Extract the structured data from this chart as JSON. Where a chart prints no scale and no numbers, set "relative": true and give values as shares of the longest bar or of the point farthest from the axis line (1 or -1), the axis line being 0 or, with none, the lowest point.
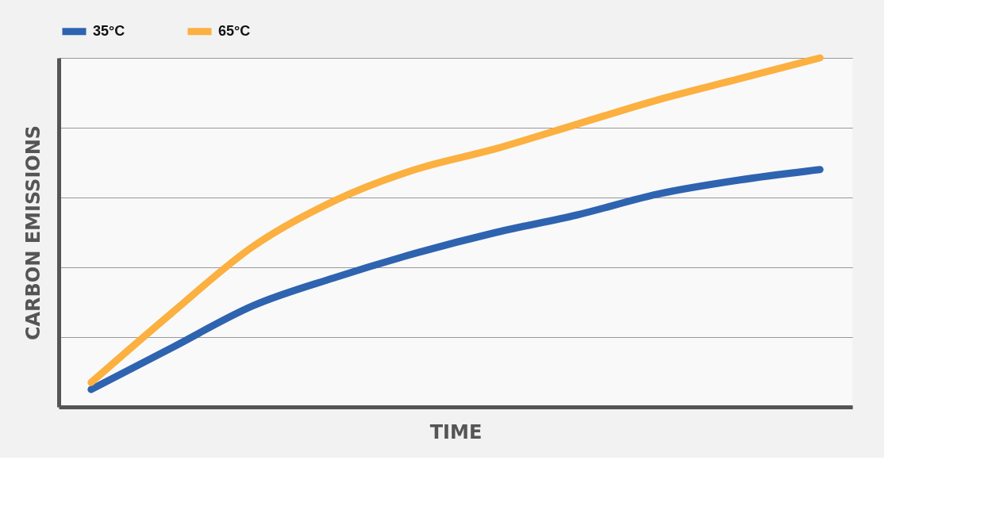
{
  "chart_data": {
    "type": "line",
    "relative": true,
    "xlabel": "TIME",
    "ylabel": "CARBON EMISSIONS",
    "categories": [
      null,
      null,
      null,
      null,
      null,
      null,
      null,
      null,
      null,
      null
    ],
    "series": [
      {
        "name": "35°C",
        "color": "#2e63b0",
        "values": [
          0.05,
          0.17,
          0.29,
          0.37,
          0.44,
          0.5,
          0.55,
          0.61,
          0.65,
          0.68
        ]
      },
      {
        "name": "65°C",
        "color": "#fbb040",
        "values": [
          0.07,
          0.27,
          0.46,
          0.59,
          0.68,
          0.74,
          0.81,
          0.88,
          0.94,
          1.0
        ]
      }
    ],
    "grid": "y",
    "legend": "top left",
    "tick_labels": false,
    "line_style": "solid"
  }
}
